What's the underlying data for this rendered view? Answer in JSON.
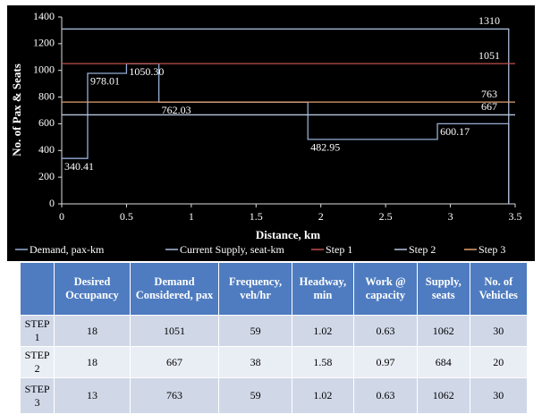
{
  "chart_data": {
    "type": "line",
    "step": true,
    "xlabel": "Distance, km",
    "ylabel": "No. of Pax & Seats",
    "xlim": [
      0,
      3.5
    ],
    "xticks": [
      0,
      0.5,
      1,
      1.5,
      2,
      2.5,
      3,
      3.5
    ],
    "ylim": [
      0,
      1400
    ],
    "yticks": [
      0,
      200,
      400,
      600,
      800,
      1000,
      1200,
      1400
    ],
    "series": [
      {
        "name": "Demand, pax-km",
        "color": "#95add6",
        "x": [
          0,
          0.2,
          0.5,
          0.75,
          1.9,
          2.9,
          3.45
        ],
        "values": [
          340.41,
          978.01,
          1050.3,
          762.03,
          482.95,
          600.17,
          0
        ],
        "value_labels": [
          "340.41",
          "978.01",
          "1050.30",
          "762.03",
          "482.95",
          "600.17",
          null
        ]
      },
      {
        "name": "Current Supply, seat-km",
        "color": "#a9bcd8",
        "x": [
          0,
          3.45
        ],
        "values": [
          1310,
          0
        ]
      },
      {
        "name": "Step 1",
        "color": "#c0504d",
        "x": [
          0,
          3.5
        ],
        "values": [
          1051,
          1051
        ]
      },
      {
        "name": "Step 2",
        "color": "#b6c6e0",
        "x": [
          0,
          3.5
        ],
        "values": [
          667,
          667
        ]
      },
      {
        "name": "Step 3",
        "color": "#e3a070",
        "x": [
          0,
          3.5
        ],
        "values": [
          763,
          763
        ]
      }
    ]
  },
  "table": {
    "columns": [
      "Desired Occupancy",
      "Demand Considered, pax",
      "Frequency, veh/hr",
      "Headway, min",
      "Work @ capacity",
      "Supply, seats",
      "No. of Vehicles"
    ],
    "rows": [
      [
        "STEP 1",
        18,
        1051,
        59,
        1.02,
        0.63,
        1062,
        30
      ],
      [
        "STEP 2",
        18,
        667,
        38,
        1.58,
        0.97,
        684,
        20
      ],
      [
        "STEP 3",
        13,
        763,
        59,
        1.02,
        0.63,
        1062,
        30
      ]
    ]
  }
}
